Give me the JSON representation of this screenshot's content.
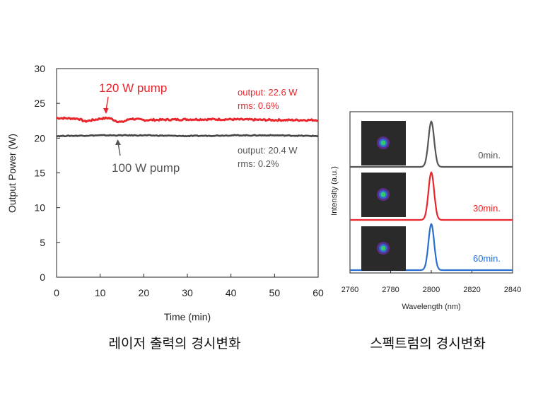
{
  "chart_data": [
    {
      "type": "line",
      "xlabel": "Time (min)",
      "ylabel": "Output Power (W)",
      "xlim": [
        0,
        60
      ],
      "ylim": [
        0,
        30
      ],
      "xticks": [
        0,
        10,
        20,
        30,
        40,
        50,
        60
      ],
      "yticks": [
        0,
        5,
        10,
        15,
        20,
        25,
        30
      ],
      "grid": false,
      "series": [
        {
          "name": "120 W pump",
          "color": "#e8262b",
          "mean": 22.6,
          "x": [
            0,
            5,
            6.5,
            10,
            12,
            14,
            15,
            17,
            20,
            30,
            40,
            50,
            60
          ],
          "y": [
            22.9,
            22.8,
            22.4,
            22.8,
            22.9,
            22.4,
            22.3,
            22.8,
            22.6,
            22.7,
            22.7,
            22.6,
            22.6
          ]
        },
        {
          "name": "100 W pump",
          "color": "#444444",
          "mean": 20.4,
          "x": [
            0,
            10,
            20,
            30,
            40,
            50,
            60
          ],
          "y": [
            20.3,
            20.4,
            20.4,
            20.3,
            20.4,
            20.4,
            20.3
          ]
        }
      ],
      "annotations": [
        {
          "series": "120 W pump",
          "pump_label": "120 W pump",
          "output": "output: 22.6 W",
          "rms": "rms: 0.6%",
          "color": "#e8262b"
        },
        {
          "series": "100 W pump",
          "pump_label": "100 W pump",
          "output": "output: 20.4 W",
          "rms": "rms: 0.2%",
          "color": "#444444"
        }
      ],
      "caption": "레이저 출력의 경시변화"
    },
    {
      "type": "line",
      "xlabel": "Wavelength (nm)",
      "ylabel": "Intensity (a.u.)",
      "xlim": [
        2760,
        2840
      ],
      "xticks": [
        2760,
        2780,
        2800,
        2820,
        2840
      ],
      "grid": false,
      "series": [
        {
          "name": "0min.",
          "color": "#555555",
          "peak_wavelength": 2800
        },
        {
          "name": "30min.",
          "color": "#e8262b",
          "peak_wavelength": 2800
        },
        {
          "name": "60min.",
          "color": "#2a6fd0",
          "peak_wavelength": 2800
        }
      ],
      "caption": "스펙트럼의 경시변화"
    }
  ]
}
